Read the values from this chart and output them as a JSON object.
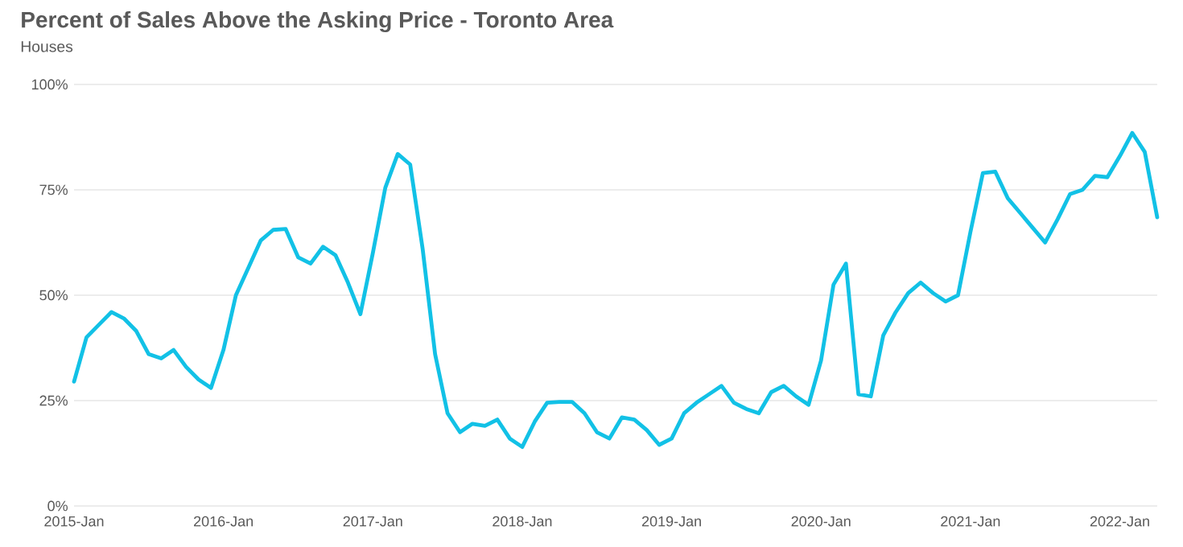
{
  "chart_data": {
    "type": "line",
    "title": "Percent of Sales Above the Asking Price - Toronto Area",
    "subtitle": "Houses",
    "x": [
      "2015-01",
      "2015-02",
      "2015-03",
      "2015-04",
      "2015-05",
      "2015-06",
      "2015-07",
      "2015-08",
      "2015-09",
      "2015-10",
      "2015-11",
      "2015-12",
      "2016-01",
      "2016-02",
      "2016-03",
      "2016-04",
      "2016-05",
      "2016-06",
      "2016-07",
      "2016-08",
      "2016-09",
      "2016-10",
      "2016-11",
      "2016-12",
      "2017-01",
      "2017-02",
      "2017-03",
      "2017-04",
      "2017-05",
      "2017-06",
      "2017-07",
      "2017-08",
      "2017-09",
      "2017-10",
      "2017-11",
      "2017-12",
      "2018-01",
      "2018-02",
      "2018-03",
      "2018-04",
      "2018-05",
      "2018-06",
      "2018-07",
      "2018-08",
      "2018-09",
      "2018-10",
      "2018-11",
      "2018-12",
      "2019-01",
      "2019-02",
      "2019-03",
      "2019-04",
      "2019-05",
      "2019-06",
      "2019-07",
      "2019-08",
      "2019-09",
      "2019-10",
      "2019-11",
      "2019-12",
      "2020-01",
      "2020-02",
      "2020-03",
      "2020-04",
      "2020-05",
      "2020-06",
      "2020-07",
      "2020-08",
      "2020-09",
      "2020-10",
      "2020-11",
      "2020-12",
      "2021-01",
      "2021-02",
      "2021-03",
      "2021-04",
      "2021-05",
      "2021-06",
      "2021-07",
      "2021-08",
      "2021-09",
      "2021-10",
      "2021-11",
      "2021-12",
      "2022-01",
      "2022-02",
      "2022-03",
      "2022-04"
    ],
    "series": [
      {
        "color": "#12c1e6",
        "values": [
          29.5,
          40,
          43,
          46,
          44.5,
          41.5,
          36,
          35,
          37,
          33,
          30,
          28,
          37,
          50,
          56.5,
          63,
          65.5,
          65.7,
          59,
          57.5,
          61.5,
          59.5,
          53,
          45.5,
          60,
          75.5,
          83.5,
          81,
          61,
          36,
          22,
          17.5,
          19.5,
          19,
          20.5,
          16,
          14,
          20,
          24.5,
          24.7,
          24.7,
          22,
          17.5,
          16,
          21,
          20.5,
          18,
          14.5,
          16,
          22,
          24.5,
          26.5,
          28.5,
          24.5,
          23,
          22,
          27,
          28.5,
          26,
          24,
          34.5,
          52.5,
          57.5,
          26.5,
          26,
          40.5,
          46,
          50.5,
          53,
          50.5,
          48.5,
          50,
          65,
          79,
          79.3,
          73,
          69.5,
          66,
          62.5,
          68,
          74,
          75,
          78.3,
          78,
          83,
          88.5,
          84,
          68.5
        ]
      }
    ],
    "xlim": [
      "2015-01",
      "2022-04"
    ],
    "xticks": [
      {
        "value": "2015-01",
        "label": "2015-Jan"
      },
      {
        "value": "2016-01",
        "label": "2016-Jan"
      },
      {
        "value": "2017-01",
        "label": "2017-Jan"
      },
      {
        "value": "2018-01",
        "label": "2018-Jan"
      },
      {
        "value": "2019-01",
        "label": "2019-Jan"
      },
      {
        "value": "2020-01",
        "label": "2020-Jan"
      },
      {
        "value": "2021-01",
        "label": "2021-Jan"
      },
      {
        "value": "2022-01",
        "label": "2022-Jan"
      }
    ],
    "ylim": [
      0,
      100
    ],
    "yticks": [
      {
        "value": 0,
        "label": "0%"
      },
      {
        "value": 25,
        "label": "25%"
      },
      {
        "value": 50,
        "label": "50%"
      },
      {
        "value": 75,
        "label": "75%"
      },
      {
        "value": 100,
        "label": "100%"
      }
    ],
    "grid": "y",
    "legend": false,
    "marker": "none",
    "line_style": "solid"
  }
}
